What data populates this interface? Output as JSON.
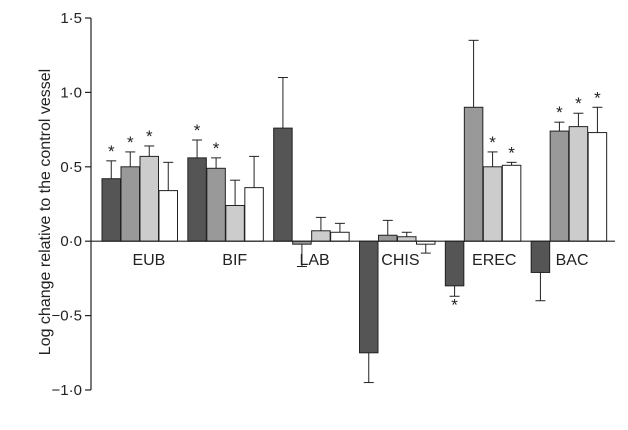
{
  "chart_data": {
    "type": "bar",
    "ylabel": "Log change relative to the control vessel",
    "ylim": [
      -1.0,
      1.5
    ],
    "yticks": [
      -1.0,
      -0.5,
      0.0,
      0.5,
      1.0,
      1.5
    ],
    "ytick_labels": [
      "−1·0",
      "−0·5",
      "0·0",
      "0·5",
      "1·0",
      "1·5"
    ],
    "categories": [
      "EUB",
      "BIF",
      "LAB",
      "CHIS",
      "EREC",
      "BAC"
    ],
    "series": [
      {
        "color": "#555555",
        "values": [
          0.42,
          0.56,
          0.76,
          -0.75,
          -0.3,
          -0.21
        ],
        "errors": [
          0.12,
          0.12,
          0.34,
          0.2,
          0.07,
          0.19
        ],
        "significant": [
          true,
          true,
          false,
          false,
          true,
          false
        ]
      },
      {
        "color": "#999999",
        "values": [
          0.5,
          0.49,
          -0.02,
          0.04,
          0.9,
          0.74
        ],
        "errors": [
          0.1,
          0.07,
          0.15,
          0.1,
          0.45,
          0.06
        ],
        "significant": [
          true,
          true,
          false,
          false,
          false,
          true
        ]
      },
      {
        "color": "#cccccc",
        "values": [
          0.57,
          0.24,
          0.07,
          0.03,
          0.5,
          0.77
        ],
        "errors": [
          0.07,
          0.17,
          0.09,
          0.03,
          0.1,
          0.09
        ],
        "significant": [
          true,
          false,
          false,
          false,
          true,
          true
        ]
      },
      {
        "color": "#ffffff",
        "values": [
          0.34,
          0.36,
          0.06,
          -0.02,
          0.51,
          0.73
        ],
        "errors": [
          0.19,
          0.21,
          0.06,
          0.06,
          0.02,
          0.17
        ],
        "significant": [
          false,
          false,
          false,
          false,
          true,
          true
        ]
      }
    ],
    "significance_marker": "*",
    "legend": "none",
    "grid": false
  }
}
